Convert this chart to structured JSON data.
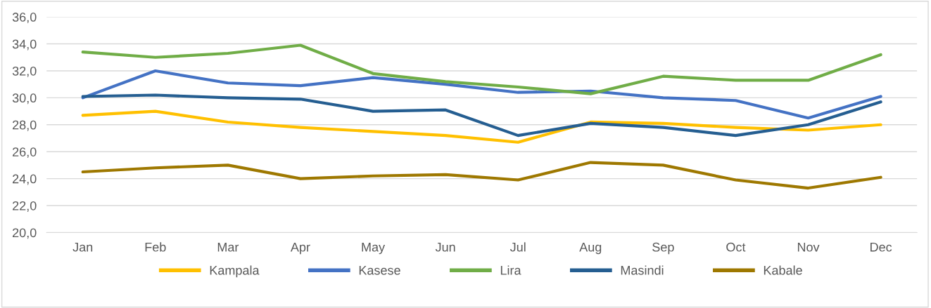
{
  "chart_data": {
    "type": "line",
    "categories": [
      "Jan",
      "Feb",
      "Mar",
      "Apr",
      "May",
      "Jun",
      "Jul",
      "Aug",
      "Sep",
      "Oct",
      "Nov",
      "Dec"
    ],
    "series": [
      {
        "name": "Kampala",
        "color": "#ffc000",
        "values": [
          28.7,
          29.0,
          28.2,
          27.8,
          27.5,
          27.2,
          26.7,
          28.2,
          28.1,
          27.8,
          27.6,
          28.0
        ]
      },
      {
        "name": "Kasese",
        "color": "#4472c4",
        "values": [
          30.0,
          32.0,
          31.1,
          30.9,
          31.5,
          31.0,
          30.4,
          30.5,
          30.0,
          29.8,
          28.5,
          30.1
        ]
      },
      {
        "name": "Lira",
        "color": "#70ad47",
        "values": [
          33.4,
          33.0,
          33.3,
          33.9,
          31.8,
          31.2,
          30.8,
          30.3,
          31.6,
          31.3,
          31.3,
          33.2
        ]
      },
      {
        "name": "Masindi",
        "color": "#255e91",
        "values": [
          30.1,
          30.2,
          30.0,
          29.9,
          29.0,
          29.1,
          27.2,
          28.1,
          27.8,
          27.2,
          28.0,
          29.7
        ]
      },
      {
        "name": "Kabale",
        "color": "#9e7800",
        "values": [
          24.5,
          24.8,
          25.0,
          24.0,
          24.2,
          24.3,
          23.9,
          25.2,
          25.0,
          23.9,
          23.3,
          24.1
        ]
      }
    ],
    "ylim": [
      20,
      36
    ],
    "yticks": [
      {
        "value": 20,
        "label": "20,0"
      },
      {
        "value": 22,
        "label": "22,0"
      },
      {
        "value": 24,
        "label": "24,0"
      },
      {
        "value": 26,
        "label": "26,0"
      },
      {
        "value": 28,
        "label": "28,0"
      },
      {
        "value": 30,
        "label": "30,0"
      },
      {
        "value": 32,
        "label": "32,0"
      },
      {
        "value": 34,
        "label": "34,0"
      },
      {
        "value": 36,
        "label": "36,0"
      }
    ],
    "grid": "y",
    "legend": "bottom",
    "marker": "none",
    "line_style": "solid"
  }
}
